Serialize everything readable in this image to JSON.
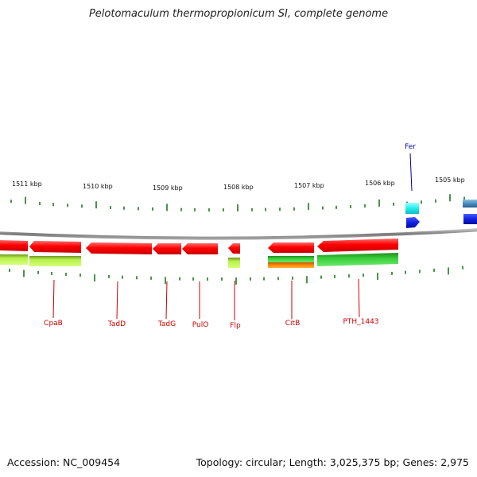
{
  "title": "Pelotomaculum thermopropionicum SI, complete genome",
  "footer": {
    "accession": "Accession: NC_009454",
    "summary": "Topology: circular; Length: 3,025,375 bp; Genes: 2,975"
  },
  "scale": {
    "labels": [
      "1511 kbp",
      "1510 kbp",
      "1509 kbp",
      "1508 kbp",
      "1507 kbp",
      "1506 kbp",
      "1505 kbp"
    ]
  },
  "genes": [
    {
      "name": "CpaB",
      "color": "#cc0000"
    },
    {
      "name": "TadD",
      "color": "#cc0000"
    },
    {
      "name": "TadG",
      "color": "#cc0000"
    },
    {
      "name": "PulO",
      "color": "#cc0000"
    },
    {
      "name": "Flp",
      "color": "#cc0000"
    },
    {
      "name": "CitB",
      "color": "#cc0000"
    },
    {
      "name": "PTH_1443",
      "color": "#cc0000"
    },
    {
      "name": "Fer",
      "color": "#000099"
    }
  ],
  "colors": {
    "backbone": "#8a8a8a",
    "tick": "#1a7a1a",
    "cds_red": "#ff0000",
    "lime": "#a8e83a",
    "green": "#3cc63c",
    "orange": "#ff8800",
    "cyan": "#22eeee",
    "blue": "#1020e0",
    "steel": "#4a8ec0"
  }
}
